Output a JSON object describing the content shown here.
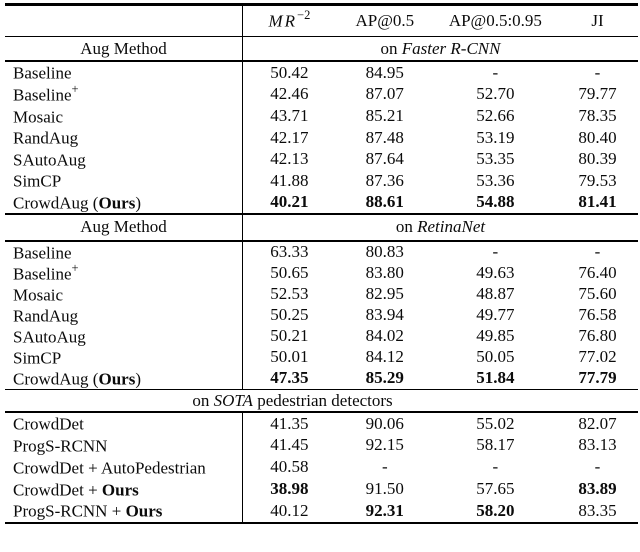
{
  "table": {
    "header": {
      "col1_base": "MR",
      "col1_sup": "−2",
      "col2": "AP@0.5",
      "col3": "AP@0.5:0.95",
      "col4": "JI"
    },
    "sections": [
      {
        "left_header": "Aug Method",
        "right_prefix": "on ",
        "right_italic": "Faster R-CNN",
        "right_suffix": "",
        "rows": [
          {
            "m1": "Baseline",
            "sup": "",
            "mb": "",
            "m2": "",
            "v1": "50.42",
            "v2": "84.95",
            "v3": "-",
            "v4": "-"
          },
          {
            "m1": "Baseline",
            "sup": "+",
            "mb": "",
            "m2": "",
            "v1": "42.46",
            "v2": "87.07",
            "v3": "52.70",
            "v4": "79.77"
          },
          {
            "m1": "Mosaic",
            "sup": "",
            "mb": "",
            "m2": "",
            "v1": "43.71",
            "v2": "85.21",
            "v3": "52.66",
            "v4": "78.35"
          },
          {
            "m1": "RandAug",
            "sup": "",
            "mb": "",
            "m2": "",
            "v1": "42.17",
            "v2": "87.48",
            "v3": "53.19",
            "v4": "80.40"
          },
          {
            "m1": "SAutoAug",
            "sup": "",
            "mb": "",
            "m2": "",
            "v1": "42.13",
            "v2": "87.64",
            "v3": "53.35",
            "v4": "80.39"
          },
          {
            "m1": "SimCP",
            "sup": "",
            "mb": "",
            "m2": "",
            "v1": "41.88",
            "v2": "87.36",
            "v3": "53.36",
            "v4": "79.53"
          },
          {
            "m1": "CrowdAug (",
            "sup": "",
            "mb": "Ours",
            "m2": ")",
            "v1": "40.21",
            "v2": "88.61",
            "v3": "54.88",
            "v4": "81.41"
          }
        ]
      },
      {
        "left_header": "Aug Method",
        "right_prefix": "on ",
        "right_italic": "RetinaNet",
        "right_suffix": "",
        "rows": [
          {
            "m1": "Baseline",
            "sup": "",
            "mb": "",
            "m2": "",
            "v1": "63.33",
            "v2": "80.83",
            "v3": "-",
            "v4": "-"
          },
          {
            "m1": "Baseline",
            "sup": "+",
            "mb": "",
            "m2": "",
            "v1": "50.65",
            "v2": "83.80",
            "v3": "49.63",
            "v4": "76.40"
          },
          {
            "m1": "Mosaic",
            "sup": "",
            "mb": "",
            "m2": "",
            "v1": "52.53",
            "v2": "82.95",
            "v3": "48.87",
            "v4": "75.60"
          },
          {
            "m1": "RandAug",
            "sup": "",
            "mb": "",
            "m2": "",
            "v1": "50.25",
            "v2": "83.94",
            "v3": "49.77",
            "v4": "76.58"
          },
          {
            "m1": "SAutoAug",
            "sup": "",
            "mb": "",
            "m2": "",
            "v1": "50.21",
            "v2": "84.02",
            "v3": "49.85",
            "v4": "76.80"
          },
          {
            "m1": "SimCP",
            "sup": "",
            "mb": "",
            "m2": "",
            "v1": "50.01",
            "v2": "84.12",
            "v3": "50.05",
            "v4": "77.02"
          },
          {
            "m1": "CrowdAug (",
            "sup": "",
            "mb": "Ours",
            "m2": ")",
            "v1": "47.35",
            "v2": "85.29",
            "v3": "51.84",
            "v4": "77.79"
          }
        ]
      },
      {
        "banner_prefix": "on ",
        "banner_italic": "SOTA",
        "banner_suffix": " pedestrian detectors",
        "rows": [
          {
            "m1": "CrowdDet",
            "sup": "",
            "mb": "",
            "m2": "",
            "v1": "41.35",
            "v2": "90.06",
            "v3": "55.02",
            "v4": "82.07"
          },
          {
            "m1": "ProgS-RCNN",
            "sup": "",
            "mb": "",
            "m2": "",
            "v1": "41.45",
            "v2": "92.15",
            "v3": "58.17",
            "v4": "83.13"
          },
          {
            "m1": "CrowdDet + AutoPedestrian",
            "sup": "",
            "mb": "",
            "m2": "",
            "v1": "40.58",
            "v2": "-",
            "v3": "-",
            "v4": "-"
          },
          {
            "m1": "CrowdDet + ",
            "sup": "",
            "mb": "Ours",
            "m2": "",
            "v1": "38.98",
            "v2": "91.50",
            "v3": "57.65",
            "v4": "83.89"
          },
          {
            "m1": "ProgS-RCNN + ",
            "sup": "",
            "mb": "Ours",
            "m2": "",
            "v1": "40.12",
            "v2": "92.31",
            "v3": "58.20",
            "v4": "83.35"
          }
        ]
      }
    ]
  }
}
